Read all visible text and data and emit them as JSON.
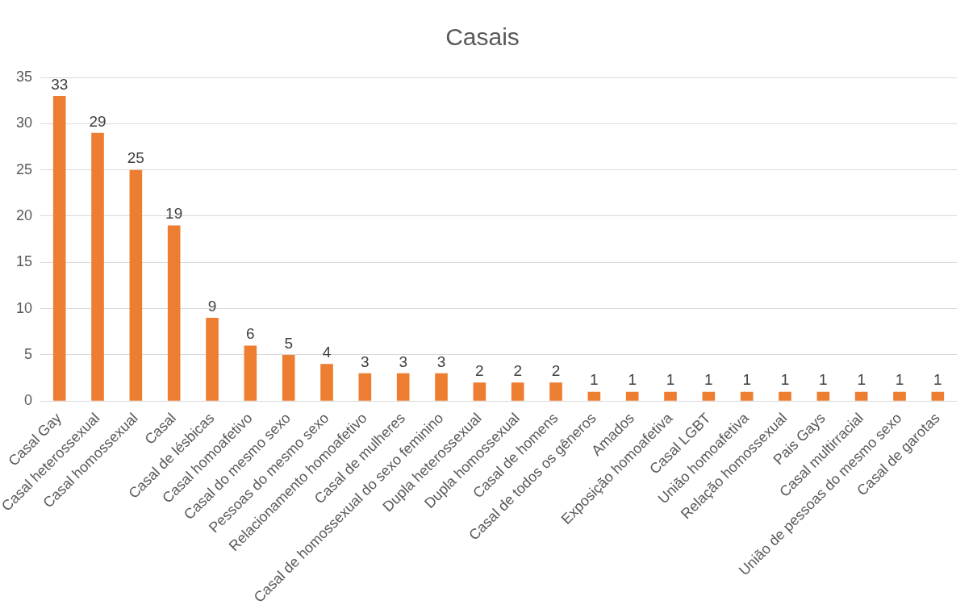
{
  "chart_data": {
    "type": "bar",
    "title": "Casais",
    "categories": [
      "Casal Gay",
      "Casal heterossexual",
      "Casal homossexual",
      "Casal",
      "Casal de lésbicas",
      "Casal homoafetivo",
      "Casal do mesmo sexo",
      "Pessoas do mesmo sexo",
      "Relacionamento homoafetivo",
      "Casal de mulheres",
      "Casal de homossexual do sexo feminino",
      "Dupla heterossexual",
      "Dupla homossexual",
      "Casal de homens",
      "Casal de todos os gêneros",
      "Amados",
      "Exposição homoafetiva",
      "Casal LGBT",
      "União homoafetiva",
      "Relação homossexual",
      "Pais Gays",
      "Casal multirracial",
      "União de pessoas do mesmo sexo",
      "Casal de garotas"
    ],
    "values": [
      33,
      29,
      25,
      19,
      9,
      6,
      5,
      4,
      3,
      3,
      3,
      2,
      2,
      2,
      1,
      1,
      1,
      1,
      1,
      1,
      1,
      1,
      1,
      1
    ],
    "color": "#ed7d31",
    "ylim": [
      0,
      35
    ],
    "yticks": [
      0,
      5,
      10,
      15,
      20,
      25,
      30,
      35
    ],
    "grid": "y",
    "data_labels": true,
    "legend": false
  }
}
